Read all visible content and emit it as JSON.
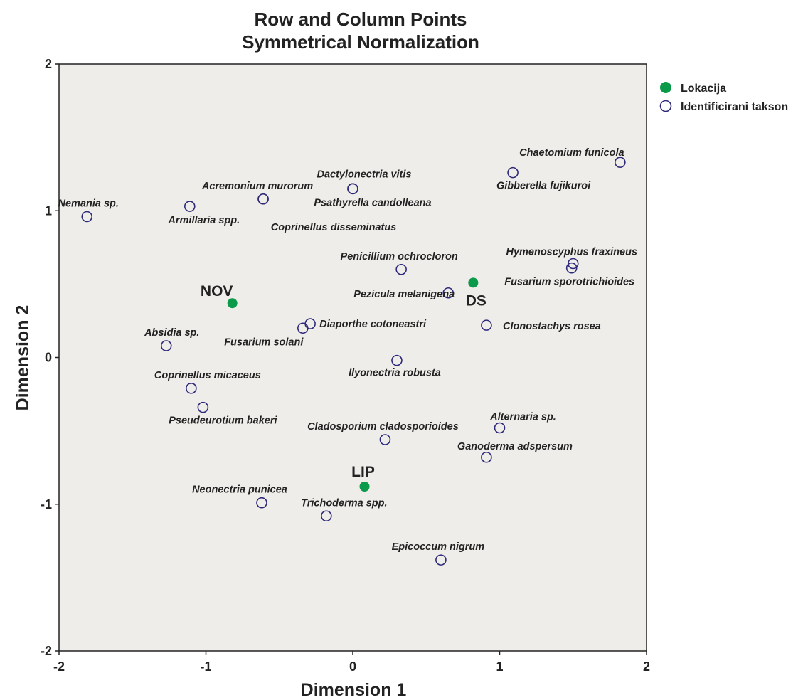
{
  "chart_data": {
    "type": "scatter",
    "title": "Row and Column Points",
    "subtitle": "Symmetrical Normalization",
    "xlabel": "Dimension 1",
    "ylabel": "Dimension 2",
    "xlim": [
      -2,
      2
    ],
    "ylim": [
      -2,
      2
    ],
    "xticks": [
      "-2",
      "-1",
      "0",
      "1",
      "2"
    ],
    "yticks": [
      "2",
      "1",
      "0",
      "-1",
      "-2"
    ],
    "grid": false,
    "background_color": "#efedea",
    "legend_position": "right",
    "legend": [
      {
        "label": "Lokacija",
        "marker": "filled-circle",
        "color": "#0a9a4a"
      },
      {
        "label": "Identificirani takson",
        "marker": "open-circle",
        "color": "#2e2a7a"
      }
    ],
    "series": [
      {
        "name": "Lokacija",
        "points": [
          {
            "label": "NOV",
            "x": -0.82,
            "y": 0.37
          },
          {
            "label": "DS",
            "x": 0.82,
            "y": 0.51
          },
          {
            "label": "LIP",
            "x": 0.08,
            "y": -0.88
          }
        ]
      },
      {
        "name": "Identificirani takson",
        "points": [
          {
            "label": "Nemania sp.",
            "x": -1.81,
            "y": 0.96
          },
          {
            "label": "Armillaria spp.",
            "x": -1.11,
            "y": 1.03
          },
          {
            "label": "Acremonium murorum",
            "x": -0.61,
            "y": 1.08
          },
          {
            "label": "Dactylonectria vitis",
            "x": 0.0,
            "y": 1.15
          },
          {
            "label": "Psathyrella candolleana",
            "x": 0.0,
            "y": 1.15
          },
          {
            "label": "Coprinellus disseminatus",
            "x": -0.61,
            "y": 1.08
          },
          {
            "label": "Chaetomium funicola",
            "x": 1.82,
            "y": 1.33
          },
          {
            "label": "Gibberella fujikuroi",
            "x": 1.09,
            "y": 1.26
          },
          {
            "label": "Penicillium ochrocloron",
            "x": 0.33,
            "y": 0.6
          },
          {
            "label": "Hymenoscyphus fraxineus",
            "x": 1.5,
            "y": 0.64
          },
          {
            "label": "Fusarium sporotrichioides",
            "x": 1.49,
            "y": 0.61
          },
          {
            "label": "Pezicula melanigena",
            "x": 0.65,
            "y": 0.44
          },
          {
            "label": "Diaporthe cotoneastri",
            "x": -0.29,
            "y": 0.23
          },
          {
            "label": "Fusarium solani",
            "x": -0.34,
            "y": 0.2
          },
          {
            "label": "Clonostachys rosea",
            "x": 0.91,
            "y": 0.22
          },
          {
            "label": "Absidia sp.",
            "x": -1.27,
            "y": 0.08
          },
          {
            "label": "Ilyonectria robusta",
            "x": 0.3,
            "y": -0.02
          },
          {
            "label": "Coprinellus micaceus",
            "x": -1.1,
            "y": -0.21
          },
          {
            "label": "Pseudeurotium bakeri",
            "x": -1.02,
            "y": -0.34
          },
          {
            "label": "Cladosporium cladosporioides",
            "x": 0.22,
            "y": -0.56
          },
          {
            "label": "Alternaria sp.",
            "x": 1.0,
            "y": -0.48
          },
          {
            "label": "Ganoderma adspersum",
            "x": 0.91,
            "y": -0.68
          },
          {
            "label": "Neonectria punicea",
            "x": -0.62,
            "y": -0.99
          },
          {
            "label": "Trichoderma spp.",
            "x": -0.18,
            "y": -1.08
          },
          {
            "label": "Epicoccum nigrum",
            "x": 0.6,
            "y": -1.38
          }
        ]
      }
    ]
  }
}
